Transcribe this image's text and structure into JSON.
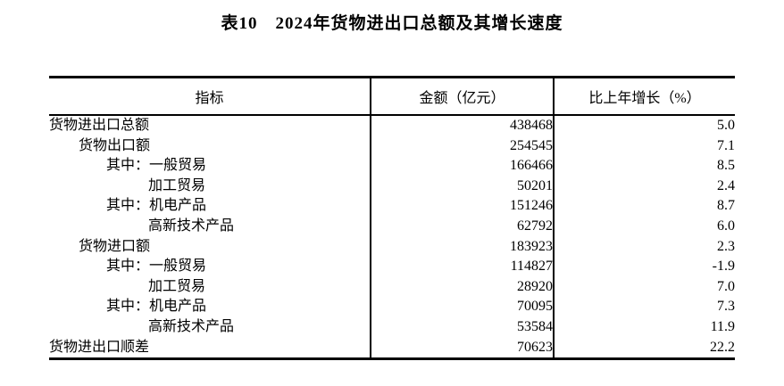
{
  "title": "表10　2024年货物进出口总额及其增长速度",
  "colors": {
    "text": "#000000",
    "background": "#ffffff",
    "rule": "#000000"
  },
  "table": {
    "columns": [
      "指标",
      "金额（亿元）",
      "比上年增长（%）"
    ],
    "rows": [
      {
        "indicator": "货物进出口总额",
        "indent": 0,
        "amount": "438468",
        "growth": "5.0"
      },
      {
        "indicator": "货物出口额",
        "indent": 1,
        "amount": "254545",
        "growth": "7.1"
      },
      {
        "indicator": "其中：一般贸易",
        "indent": 2,
        "amount": "166466",
        "growth": "8.5"
      },
      {
        "indicator": "加工贸易",
        "indent": 3,
        "amount": "50201",
        "growth": "2.4"
      },
      {
        "indicator": "其中：机电产品",
        "indent": 2,
        "amount": "151246",
        "growth": "8.7"
      },
      {
        "indicator": "高新技术产品",
        "indent": 3,
        "amount": "62792",
        "growth": "6.0"
      },
      {
        "indicator": "货物进口额",
        "indent": 1,
        "amount": "183923",
        "growth": "2.3"
      },
      {
        "indicator": "其中：一般贸易",
        "indent": 2,
        "amount": "114827",
        "growth": "-1.9"
      },
      {
        "indicator": "加工贸易",
        "indent": 3,
        "amount": "28920",
        "growth": "7.0"
      },
      {
        "indicator": "其中：机电产品",
        "indent": 2,
        "amount": "70095",
        "growth": "7.3"
      },
      {
        "indicator": "高新技术产品",
        "indent": 3,
        "amount": "53584",
        "growth": "11.9"
      },
      {
        "indicator": "货物进出口顺差",
        "indent": 0,
        "amount": "70623",
        "growth": "22.2"
      }
    ]
  }
}
